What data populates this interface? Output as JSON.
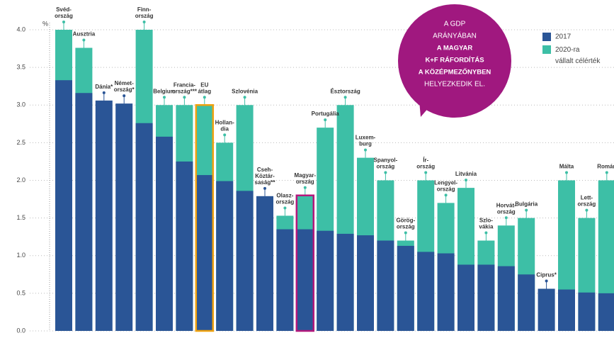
{
  "chart_data": {
    "type": "bar",
    "y_unit": "%",
    "categories": [
      [
        "Svéd-",
        "ország"
      ],
      [
        "Ausztria"
      ],
      [
        "Dánia*"
      ],
      [
        "Német-",
        "ország*"
      ],
      [
        "Finn-",
        "ország"
      ],
      [
        "Belgium"
      ],
      [
        "Francia-",
        "ország***"
      ],
      [
        "EU",
        "átlag"
      ],
      [
        "Hollan-",
        "dia"
      ],
      [
        "Szlovénia"
      ],
      [
        "Cseh-",
        "Köztár-",
        "saság**"
      ],
      [
        "Olasz-",
        "ország"
      ],
      [
        "Magyar-",
        "ország"
      ],
      [
        "Portugália"
      ],
      [
        "Észtország"
      ],
      [
        "Luxem-",
        "burg"
      ],
      [
        "Spanyol-",
        "ország"
      ],
      [
        "Görög-",
        "ország"
      ],
      [
        "Ír-",
        "ország"
      ],
      [
        "Lengyel-",
        "ország"
      ],
      [
        "Litvánia"
      ],
      [
        "Szlo-",
        "vákia"
      ],
      [
        "Horvát-",
        "ország"
      ],
      [
        "Bulgária"
      ],
      [
        "Ciprus*"
      ],
      [
        "Málta"
      ],
      [
        "Lett-",
        "ország"
      ],
      [
        "Román"
      ]
    ],
    "series": [
      {
        "name": "2020-ra vállalt célérték",
        "color": "#3dbfa6",
        "values": [
          4.0,
          3.76,
          null,
          null,
          4.0,
          3.0,
          3.0,
          3.0,
          2.5,
          3.0,
          null,
          1.53,
          1.8,
          2.7,
          3.0,
          2.3,
          2.0,
          1.2,
          2.0,
          1.7,
          1.9,
          1.2,
          1.4,
          1.5,
          null,
          2.0,
          1.5,
          2.0
        ]
      },
      {
        "name": "2017",
        "color": "#2a5596",
        "values": [
          3.33,
          3.16,
          3.06,
          3.02,
          2.76,
          2.58,
          2.25,
          2.07,
          1.99,
          1.86,
          1.79,
          1.35,
          1.35,
          1.33,
          1.29,
          1.27,
          1.2,
          1.13,
          1.05,
          1.03,
          0.88,
          0.88,
          0.86,
          0.75,
          0.56,
          0.55,
          0.51,
          0.5
        ]
      }
    ],
    "outline_colors": [
      null,
      null,
      null,
      null,
      null,
      null,
      null,
      "#f0a20f",
      null,
      null,
      null,
      null,
      "#b3187c",
      null,
      null,
      null,
      null,
      null,
      null,
      null,
      null,
      null,
      null,
      null,
      null,
      null,
      null,
      null
    ],
    "ylim": [
      0,
      4
    ],
    "yticks": [
      {
        "value": 0,
        "label": "0.0"
      },
      0.5,
      {
        "value": 1,
        "label": "1.0"
      },
      1.5,
      {
        "value": 2,
        "label": "2.0"
      },
      2.5,
      {
        "value": 3,
        "label": "3.0"
      },
      3.5,
      {
        "value": 4,
        "label": "4.0"
      }
    ],
    "grid": true,
    "callout": {
      "lines": [
        "A GDP",
        "ARÁNYÁBAN",
        "A MAGYAR",
        "K+F RÁFORDÍTÁS",
        "A KÖZÉPMEZŐNYBEN",
        "HELYEZKEDIK EL."
      ],
      "color": "#a0187f"
    }
  }
}
